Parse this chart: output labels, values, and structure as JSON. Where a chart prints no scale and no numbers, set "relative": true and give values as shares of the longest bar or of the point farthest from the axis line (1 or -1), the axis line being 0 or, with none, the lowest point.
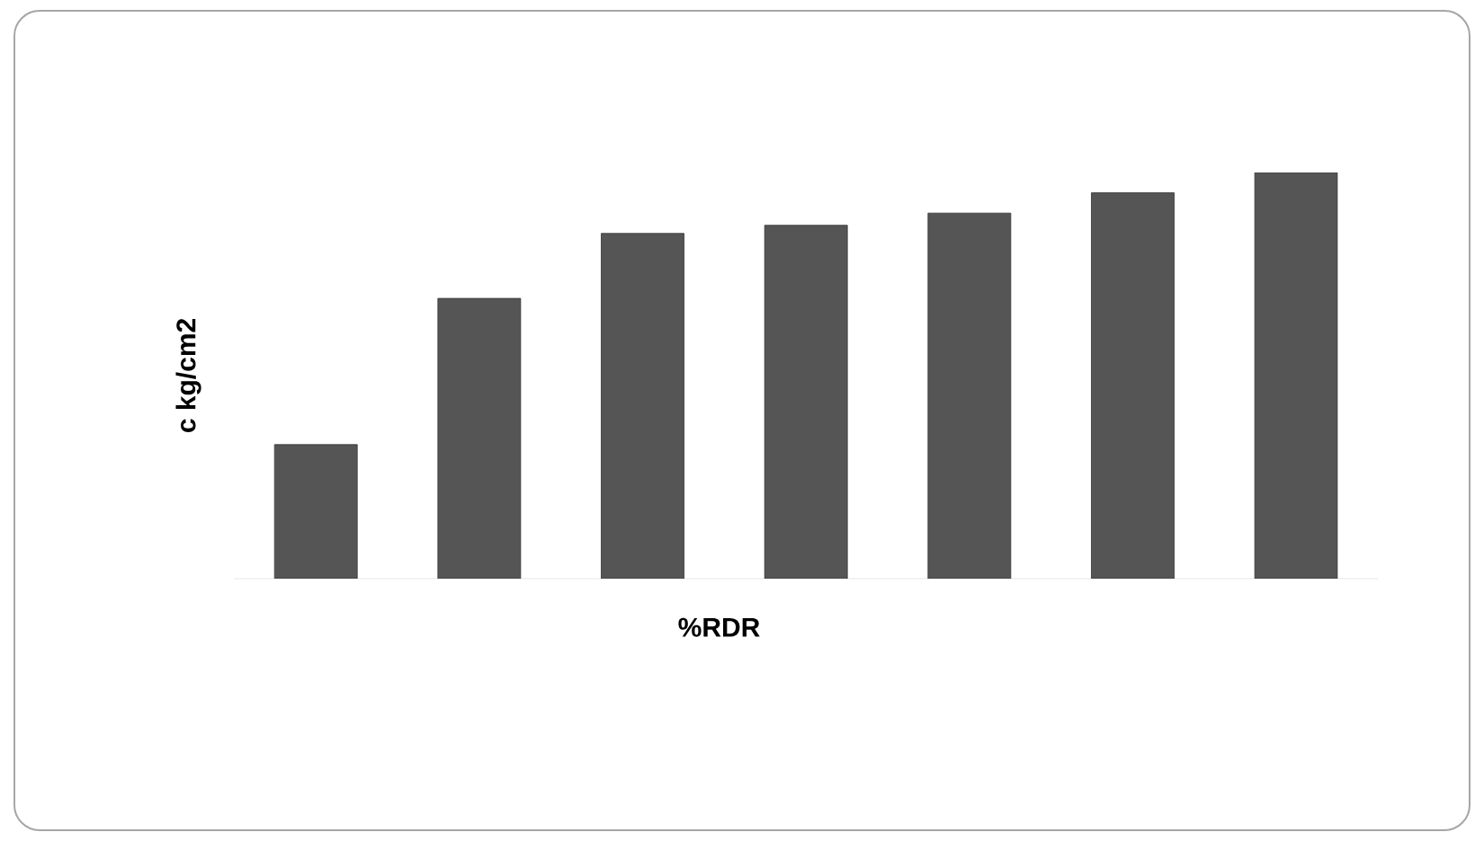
{
  "chart_data": {
    "type": "bar",
    "relative": true,
    "xlabel": "%RDR",
    "ylabel": "c kg/cm2",
    "categories": [
      null,
      null,
      null,
      null,
      null,
      null,
      null
    ],
    "values": [
      0.33,
      0.69,
      0.85,
      0.87,
      0.9,
      0.95,
      1
    ],
    "color": "#555555"
  }
}
